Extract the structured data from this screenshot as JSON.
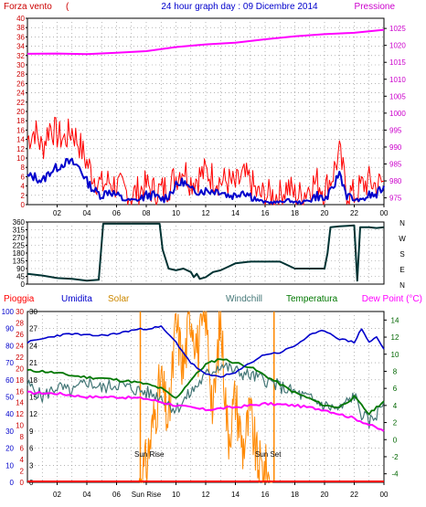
{
  "header": {
    "title": "24 hour graph day : 09 Dicembre 2014",
    "left_label": "Forza vento",
    "left_unit": "(",
    "right_label": "Pressione"
  },
  "panel1": {
    "left_ticks": [
      "0",
      "2",
      "4",
      "6",
      "8",
      "10",
      "12",
      "14",
      "16",
      "18",
      "20",
      "22",
      "24",
      "26",
      "28",
      "30",
      "32",
      "34",
      "36",
      "38",
      "40"
    ],
    "right_ticks": [
      "975",
      "980",
      "985",
      "990",
      "995",
      "1000",
      "1005",
      "1010",
      "1015",
      "1020",
      "1025"
    ],
    "x_ticks": [
      "02",
      "04",
      "06",
      "08",
      "10",
      "12",
      "14",
      "16",
      "18",
      "20",
      "22",
      "00"
    ]
  },
  "panel2": {
    "left_ticks": [
      "0",
      "45",
      "90",
      "135",
      "180",
      "225",
      "270",
      "315",
      "360"
    ],
    "direction_labels": [
      "N",
      "W",
      "S",
      "E",
      "N"
    ]
  },
  "panel3": {
    "labels": {
      "pioggia": "Pioggia",
      "umidita": "Umidita",
      "solar": "Solar",
      "windchill": "Windchill",
      "temperatura": "Temperatura",
      "dewpoint": "Dew Point (°C)"
    },
    "rain_ticks": [
      "0",
      "2",
      "4",
      "6",
      "8",
      "10",
      "12",
      "14",
      "16",
      "18",
      "20",
      "22",
      "24",
      "26",
      "28",
      "30"
    ],
    "hum_ticks": [
      "0",
      "10",
      "20",
      "30",
      "40",
      "50",
      "60",
      "70",
      "80",
      "90",
      "100"
    ],
    "solar_ticks": [
      "0",
      "3",
      "6",
      "9",
      "12",
      "15",
      "18",
      "21",
      "24",
      "27",
      "30"
    ],
    "temp_ticks": [
      "-4",
      "-2",
      "0",
      "2",
      "4",
      "6",
      "8",
      "10",
      "12",
      "14"
    ],
    "x_ticks": [
      "02",
      "04",
      "06",
      "Sun Rise",
      "10",
      "12",
      "14",
      "16",
      "18",
      "20",
      "22",
      "00"
    ],
    "sunrise_label": "Sun Rise",
    "sunset_label": "Sun Set"
  },
  "colors": {
    "wind": "#ff0000",
    "wind_avg": "#0000cc",
    "pressure": "#ff00ff",
    "direction": "#003333",
    "humidity": "#0000cc",
    "solar": "#ff8800",
    "temperature": "#007700",
    "windchill": "#447777",
    "dewpoint": "#ff00ff",
    "rain": "#ff0000"
  },
  "chart_data": [
    {
      "type": "line",
      "title": "24 hour graph day : 09 Dicembre 2014",
      "x_unit": "hour",
      "left_axis": {
        "label": "Forza vento (",
        "ylim": [
          0,
          40
        ]
      },
      "right_axis": {
        "label": "Pressione",
        "ylim": [
          973,
          1028
        ]
      },
      "series": [
        {
          "name": "Forza vento",
          "axis": "left",
          "x": [
            0,
            0.5,
            1,
            1.5,
            2,
            2.5,
            3,
            3.5,
            4,
            4.5,
            5,
            5.5,
            6,
            6.5,
            7,
            7.5,
            8,
            8.5,
            9,
            9.5,
            10,
            10.5,
            11,
            11.5,
            12,
            12.5,
            13,
            13.5,
            14,
            14.5,
            15,
            15.5,
            16,
            16.5,
            17,
            17.5,
            18,
            18.5,
            19,
            19.5,
            20,
            20.5,
            21,
            21.5,
            22,
            22.5,
            23,
            23.5,
            24
          ],
          "y": [
            14,
            16,
            12,
            17,
            15,
            14,
            16,
            13,
            9,
            6,
            4,
            5,
            4,
            3,
            2,
            3,
            4,
            3,
            3,
            4,
            6,
            8,
            5,
            6,
            7,
            6,
            5,
            5,
            4,
            6,
            5,
            2,
            2,
            2,
            2,
            4,
            2,
            2,
            4,
            5,
            3,
            6,
            11,
            3,
            2,
            4,
            5,
            4,
            5
          ]
        },
        {
          "name": "",
          "axis": "left",
          "x": [
            0,
            0.5,
            1,
            1.5,
            2,
            2.5,
            3,
            3.5,
            4,
            4.5,
            5,
            5.5,
            6,
            6.5,
            7,
            7.5,
            8,
            8.5,
            9,
            9.5,
            10,
            10.5,
            11,
            11.5,
            12,
            12.5,
            13,
            13.5,
            14,
            14.5,
            15,
            15.5,
            16,
            16.5,
            17,
            17.5,
            18,
            18.5,
            19,
            19.5,
            20,
            20.5,
            21,
            21.5,
            22,
            22.5,
            23,
            23.5,
            24
          ],
          "y": [
            6,
            6,
            5,
            7,
            8,
            9,
            9,
            8,
            5,
            3,
            2,
            3,
            2,
            1,
            1,
            1,
            2,
            2,
            1,
            2,
            4,
            5,
            3,
            3,
            3,
            3,
            3,
            2,
            2,
            3,
            2,
            1,
            0.5,
            0.5,
            0.5,
            1,
            0.5,
            0.5,
            1,
            2,
            1,
            3,
            7,
            2,
            1,
            1,
            2,
            2,
            4
          ]
        },
        {
          "name": "Pressione",
          "axis": "right",
          "x": [
            0,
            2,
            4,
            6,
            8,
            10,
            12,
            14,
            16,
            18,
            20,
            22,
            24
          ],
          "y": [
            1017.5,
            1017.6,
            1017.4,
            1017.8,
            1018.3,
            1019.5,
            1020.3,
            1020.8,
            1021.8,
            1022.7,
            1023.3,
            1023.7,
            1024.6
          ]
        }
      ]
    },
    {
      "type": "line",
      "title": "",
      "x_unit": "hour",
      "ylim": [
        0,
        360
      ],
      "series": [
        {
          "name": "",
          "x": [
            0,
            1,
            2,
            3,
            4,
            4.8,
            5.1,
            6,
            7,
            8,
            8.9,
            9.1,
            9.5,
            10,
            10.5,
            11,
            11.2,
            11.4,
            11.6,
            12,
            12.5,
            13,
            13.5,
            14,
            15,
            16,
            17,
            18,
            19,
            20,
            20.2,
            20.4,
            21,
            22,
            22.2,
            22.4,
            23,
            23.5,
            24
          ],
          "y": [
            60,
            50,
            35,
            30,
            20,
            25,
            350,
            350,
            350,
            350,
            350,
            200,
            90,
            80,
            90,
            70,
            40,
            60,
            30,
            40,
            70,
            80,
            100,
            120,
            130,
            130,
            130,
            90,
            90,
            90,
            180,
            330,
            335,
            340,
            20,
            330,
            330,
            325,
            330
          ]
        }
      ]
    },
    {
      "type": "line",
      "title": "",
      "x_unit": "hour",
      "axes": {
        "pioggia": {
          "label": "Pioggia",
          "ylim": [
            0,
            30
          ]
        },
        "umidita": {
          "label": "Umidita",
          "ylim": [
            0,
            100
          ]
        },
        "solar": {
          "label": "Solar",
          "ylim": [
            0,
            30
          ]
        },
        "temperatura": {
          "label": "Temperatura (°C)",
          "ylim": [
            -5,
            15
          ]
        }
      },
      "series": [
        {
          "name": "Umidita",
          "axis": "umidita",
          "x": [
            0,
            1,
            2,
            3,
            4,
            5,
            6,
            7,
            8,
            9,
            10,
            11,
            12,
            13,
            14,
            15,
            16,
            17,
            18,
            19,
            20,
            21,
            22,
            22.5,
            23,
            23.5,
            24
          ],
          "y": [
            82,
            84,
            86,
            87,
            86,
            86,
            87,
            89,
            90,
            91,
            82,
            70,
            63,
            62,
            64,
            70,
            75,
            76,
            80,
            86,
            89,
            84,
            82,
            90,
            82,
            85,
            78
          ]
        },
        {
          "name": "Solar",
          "axis": "solar",
          "x": [
            7.5,
            8,
            8.5,
            9,
            9.5,
            10,
            10.5,
            11,
            11.5,
            12,
            12.5,
            13,
            13.5,
            14,
            14.5,
            15,
            15.5,
            16,
            16.5
          ],
          "y": [
            0,
            3,
            11,
            18,
            10,
            28,
            20,
            30,
            23,
            30,
            12,
            29,
            8,
            15,
            6,
            12,
            3,
            2,
            0
          ]
        },
        {
          "name": "Temperatura",
          "axis": "temperatura",
          "x": [
            0,
            1,
            2,
            3,
            4,
            5,
            6,
            7,
            8,
            9,
            10,
            11,
            12,
            13,
            14,
            15,
            16,
            17,
            18,
            19,
            20,
            21,
            22,
            22.5,
            23,
            23.5,
            24
          ],
          "y": [
            8.1,
            8.0,
            7.8,
            7.5,
            7.3,
            7.2,
            7.0,
            6.8,
            6.5,
            6.0,
            4.8,
            7.0,
            8.8,
            9.5,
            9.0,
            8.5,
            7.5,
            6.5,
            5.5,
            4.8,
            4.0,
            3.8,
            5.0,
            4.0,
            3.0,
            3.8,
            4.5
          ]
        },
        {
          "name": "Windchill",
          "axis": "temperatura",
          "x": [
            0,
            1,
            2,
            3,
            4,
            5,
            6,
            7,
            8,
            9,
            10,
            11,
            12,
            13,
            14,
            15,
            16,
            17,
            18,
            19,
            20,
            21,
            22,
            22.5,
            23,
            23.5,
            24
          ],
          "y": [
            6.5,
            5.0,
            6.2,
            5.5,
            6.8,
            6.0,
            6.5,
            6.0,
            5.5,
            5.0,
            3.5,
            5.5,
            7.5,
            8.8,
            8.0,
            7.5,
            7.0,
            6.2,
            5.5,
            4.8,
            4.0,
            3.5,
            5.2,
            3.0,
            2.0,
            3.0,
            4.5
          ]
        },
        {
          "name": "Dew Point",
          "axis": "temperatura",
          "x": [
            0,
            2,
            4,
            6,
            8,
            10,
            12,
            14,
            16,
            18,
            20,
            22,
            24
          ],
          "y": [
            5.5,
            5.4,
            5.0,
            5.0,
            4.8,
            4.0,
            3.5,
            3.8,
            4.2,
            4.0,
            3.5,
            2.5,
            1.0
          ]
        },
        {
          "name": "Pioggia",
          "axis": "pioggia",
          "x": [
            0,
            24
          ],
          "y": [
            0,
            0
          ]
        }
      ],
      "markers": [
        {
          "name": "Sun Rise",
          "x": 7.6
        },
        {
          "name": "Sun Set",
          "x": 16.6
        }
      ]
    }
  ]
}
